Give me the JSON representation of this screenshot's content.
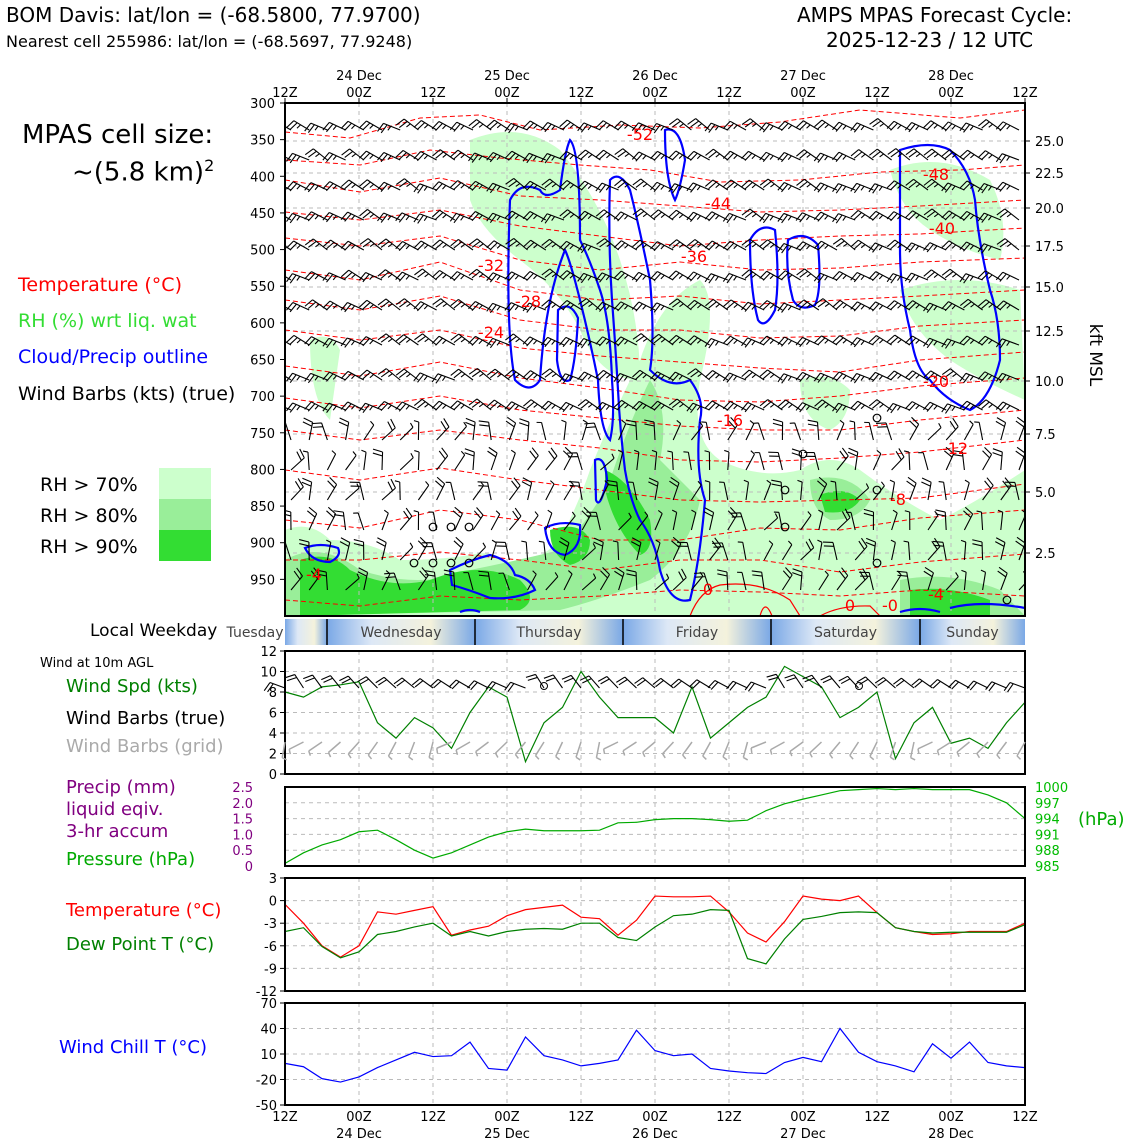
{
  "header": {
    "station": "BOM Davis: lat/lon = (-68.5800, 77.9700)",
    "nearest": "Nearest cell 255986: lat/lon = (-68.5697, 77.9248)",
    "cycle_line1": "AMPS MPAS Forecast Cycle:",
    "cycle_line2": "2025-12-23 / 12 UTC"
  },
  "cell_size": {
    "line1": "MPAS cell size:",
    "line2": "~(5.8 km)",
    "exp": "2"
  },
  "legend": {
    "temperature": "Temperature (°C)",
    "rh": "RH (%) wrt liq. wat",
    "cloud": "Cloud/Precip outline",
    "barbs": "Wind Barbs (kts) (true)",
    "rh70": "RH > 70%",
    "rh80": "RH > 80%",
    "rh90": "RH > 90%"
  },
  "colors": {
    "temp": "#ff0000",
    "rh_label": "#33dd33",
    "cloud": "#0000ff",
    "rh70": "#ccffcc",
    "rh80": "#99ee99",
    "rh90": "#33dd33",
    "precip": "#800080",
    "pressure": "#00aa00",
    "windspd": "#008000",
    "dew": "#008000",
    "chill": "#0000ff",
    "grid_barb": "#aaaaaa"
  },
  "top_axis": {
    "dates": [
      "24 Dec",
      "25 Dec",
      "26 Dec",
      "27 Dec",
      "28 Dec"
    ],
    "hours": [
      "12Z",
      "00Z",
      "12Z",
      "00Z",
      "12Z",
      "00Z",
      "12Z",
      "00Z",
      "12Z",
      "00Z",
      "12Z"
    ]
  },
  "cross_section": {
    "pressure_ticks": [
      "300",
      "350",
      "400",
      "450",
      "500",
      "550",
      "600",
      "650",
      "700",
      "750",
      "800",
      "850",
      "900",
      "950"
    ],
    "kft_ticks": [
      "25.0",
      "22.5",
      "20.0",
      "17.5",
      "15.0",
      "12.5",
      "10.0",
      "7.5",
      "5.0",
      "2.5"
    ],
    "kft_label": "kft MSL",
    "temp_labels": [
      "-52",
      "-48",
      "-44",
      "-40",
      "-36",
      "-32",
      "-28",
      "-24",
      "-20",
      "-16",
      "-12",
      "-8",
      "-4",
      "-4",
      "0",
      "0",
      "-0"
    ]
  },
  "weekday": {
    "label": "Local Weekday",
    "days": [
      "Tuesday",
      "Wednesday",
      "Thursday",
      "Friday",
      "Saturday",
      "Sunday"
    ]
  },
  "panel_labels": {
    "wind_at": "Wind at 10m AGL",
    "wind_spd": "Wind Spd (kts)",
    "barbs_true": "Wind Barbs (true)",
    "barbs_grid": "Wind Barbs (grid)",
    "precip1": "Precip (mm)",
    "precip2": "liquid eqiv.",
    "precip3": "3-hr accum",
    "pressure": "Pressure (hPa)",
    "temperature": "Temperature (°C)",
    "dewpoint": "Dew Point T (°C)",
    "windchill": "Wind Chill T (°C)",
    "hpa_unit": "(hPa)"
  },
  "bottom_axis": {
    "hours": [
      "12Z",
      "00Z",
      "12Z",
      "00Z",
      "12Z",
      "00Z",
      "12Z",
      "00Z",
      "12Z",
      "00Z",
      "12Z"
    ],
    "dates": [
      "24 Dec",
      "25 Dec",
      "26 Dec",
      "27 Dec",
      "28 Dec"
    ]
  },
  "chart_data": [
    {
      "type": "line",
      "panel": "wind_speed",
      "x_hours": [
        0,
        3,
        6,
        9,
        12,
        15,
        18,
        21,
        24,
        27,
        30,
        33,
        36,
        39,
        42,
        45,
        48,
        51,
        54,
        57,
        60,
        63,
        66,
        69,
        72,
        75,
        78,
        81,
        84,
        87,
        90,
        93,
        96,
        99,
        102,
        105,
        108,
        111,
        114,
        117,
        120
      ],
      "series": [
        {
          "name": "Wind Spd (kts)",
          "values": [
            8,
            7.5,
            8.5,
            8.7,
            9,
            5,
            3.5,
            5.5,
            4.5,
            2.5,
            6,
            8.5,
            7.5,
            1.2,
            5,
            6.5,
            10,
            7.5,
            5.5,
            5.5,
            5.5,
            4,
            8.5,
            3.5,
            5,
            6.5,
            7.5,
            10.5,
            9.5,
            8.5,
            5.5,
            6.5,
            8,
            1.5,
            5,
            6.5,
            3,
            3.5,
            2.5,
            5,
            7
          ]
        }
      ],
      "ylim": [
        0,
        12
      ],
      "yticks": [
        "0",
        "2",
        "4",
        "6",
        "8",
        "10",
        "12"
      ]
    },
    {
      "type": "line",
      "panel": "pressure",
      "x_hours": [
        0,
        3,
        6,
        9,
        12,
        15,
        18,
        21,
        24,
        27,
        30,
        33,
        36,
        39,
        42,
        45,
        48,
        51,
        54,
        57,
        60,
        63,
        66,
        69,
        72,
        75,
        78,
        81,
        84,
        87,
        90,
        93,
        96,
        99,
        102,
        105,
        108,
        111,
        114,
        117,
        120
      ],
      "series": [
        {
          "name": "Pressure (hPa)",
          "values": [
            985.5,
            987.5,
            989,
            990,
            991.5,
            991.8,
            990,
            988,
            986.5,
            987.5,
            989,
            990.5,
            991.5,
            992,
            991.7,
            991.7,
            991.7,
            991.8,
            993.2,
            993.3,
            993.8,
            994,
            994,
            993.8,
            993.5,
            993.7,
            995.5,
            996.8,
            997.7,
            998.5,
            999.3,
            999.5,
            999.7,
            999.5,
            999.7,
            999.5,
            999.5,
            999.5,
            998.5,
            997,
            994
          ]
        }
      ],
      "y_left_ticks": [
        "0",
        "0.5",
        "1.0",
        "1.5",
        "2.0",
        "2.5"
      ],
      "y_right_ticks": [
        "985",
        "988",
        "991",
        "994",
        "997",
        "1000"
      ],
      "ylim": [
        985,
        1000
      ]
    },
    {
      "type": "line",
      "panel": "temperature",
      "x_hours": [
        0,
        3,
        6,
        9,
        12,
        15,
        18,
        21,
        24,
        27,
        30,
        33,
        36,
        39,
        42,
        45,
        48,
        51,
        54,
        57,
        60,
        63,
        66,
        69,
        72,
        75,
        78,
        81,
        84,
        87,
        90,
        93,
        96,
        99,
        102,
        105,
        108,
        111,
        114,
        117,
        120
      ],
      "series": [
        {
          "name": "Temperature (°C)",
          "values": [
            -0.5,
            -3,
            -6,
            -7.5,
            -6,
            -1.5,
            -1.8,
            -1.3,
            -0.8,
            -4.6,
            -3.9,
            -3.4,
            -2,
            -1.2,
            -0.9,
            -0.6,
            -2.2,
            -2.4,
            -4.6,
            -2.6,
            0.6,
            0.5,
            0.5,
            0.6,
            -1.5,
            -4.3,
            -5.5,
            -2.8,
            0.6,
            0.2,
            0,
            0.6,
            -1.6,
            -3.6,
            -4.1,
            -4.5,
            -4.4,
            -4.1,
            -4.1,
            -4.1,
            -3
          ]
        },
        {
          "name": "Dew Point T (°C)",
          "values": [
            -4.1,
            -3.6,
            -6.1,
            -7.6,
            -6.8,
            -4.5,
            -4.1,
            -3.5,
            -3,
            -4.7,
            -4.1,
            -4.7,
            -4.1,
            -3.8,
            -3.7,
            -3.8,
            -3,
            -3,
            -4.9,
            -5.3,
            -3.5,
            -2,
            -1.8,
            -1.2,
            -1.3,
            -7.7,
            -8.4,
            -5.1,
            -2.5,
            -2.1,
            -1.6,
            -1.5,
            -1.6,
            -3.6,
            -4.1,
            -4.3,
            -4.2,
            -4.2,
            -4.2,
            -4.2,
            -3.2
          ]
        }
      ],
      "ylim": [
        -12,
        3
      ],
      "yticks": [
        "-12",
        "-9",
        "-6",
        "-3",
        "0",
        "3"
      ]
    },
    {
      "type": "line",
      "panel": "wind_chill",
      "x_hours": [
        0,
        3,
        6,
        9,
        12,
        15,
        18,
        21,
        24,
        27,
        30,
        33,
        36,
        39,
        42,
        45,
        48,
        51,
        54,
        57,
        60,
        63,
        66,
        69,
        72,
        75,
        78,
        81,
        84,
        87,
        90,
        93,
        96,
        99,
        102,
        105,
        108,
        111,
        114,
        117,
        120
      ],
      "series": [
        {
          "name": "Wind Chill T (°C)",
          "values": [
            -1,
            -5,
            -19,
            -23,
            -17,
            -6,
            3,
            12,
            7,
            8,
            24,
            -7,
            -9,
            30,
            8,
            3,
            -4,
            -1,
            3,
            38,
            14,
            8,
            10,
            -7,
            -10,
            -12,
            -13,
            0,
            6,
            1,
            40,
            12,
            1,
            -4,
            -11,
            22,
            5,
            24,
            0,
            -4,
            -6
          ]
        }
      ],
      "ylim": [
        -50,
        70
      ],
      "yticks": [
        "-50",
        "-20",
        "10",
        "40",
        "70"
      ]
    }
  ]
}
